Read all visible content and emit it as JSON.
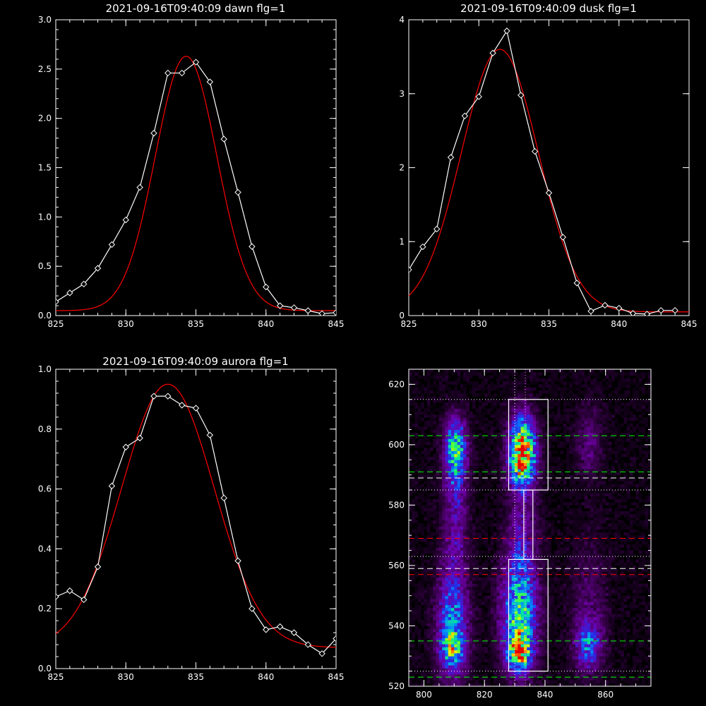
{
  "chart_data": [
    {
      "type": "line",
      "title": "2021-09-16T09:40:09 dawn flg=1",
      "xlim": [
        825,
        845
      ],
      "ylim": [
        0,
        3.0
      ],
      "xticks": [
        "825",
        "830",
        "835",
        "840",
        "845"
      ],
      "yticks": [
        "0.0",
        "0.5",
        "1.0",
        "1.5",
        "2.0",
        "2.5",
        "3.0"
      ],
      "series": [
        {
          "role": "data",
          "color": "#ffffff",
          "marker": "diamond",
          "x": [
            825,
            826,
            827,
            828,
            829,
            830,
            831,
            832,
            833,
            834,
            835,
            836,
            837,
            838,
            839,
            840,
            841,
            842,
            843,
            844,
            845
          ],
          "y": [
            0.14,
            0.23,
            0.32,
            0.48,
            0.72,
            0.97,
            1.3,
            1.85,
            2.46,
            2.46,
            2.57,
            2.37,
            1.79,
            1.25,
            0.7,
            0.29,
            0.1,
            0.08,
            0.05,
            0.02,
            0.03
          ]
        },
        {
          "role": "fit",
          "color": "#ff0000",
          "type": "gaussian",
          "amplitude": 2.58,
          "center": 834.3,
          "sigma": 2.2,
          "offset": 0.05
        }
      ]
    },
    {
      "type": "line",
      "title": "2021-09-16T09:40:09 dusk flg=1",
      "xlim": [
        825,
        845
      ],
      "ylim": [
        0,
        4
      ],
      "xticks": [
        "825",
        "830",
        "835",
        "840",
        "845"
      ],
      "yticks": [
        "0",
        "1",
        "2",
        "3",
        "4"
      ],
      "series": [
        {
          "role": "data",
          "color": "#ffffff",
          "marker": "diamond",
          "x": [
            825,
            826,
            827,
            828,
            829,
            830,
            831,
            832,
            833,
            834,
            835,
            836,
            837,
            838,
            839,
            840,
            841,
            842,
            843,
            844
          ],
          "y": [
            0.62,
            0.93,
            1.17,
            2.14,
            2.7,
            2.96,
            3.55,
            3.85,
            2.98,
            2.22,
            1.66,
            1.06,
            0.44,
            0.06,
            0.14,
            0.1,
            0.03,
            0.02,
            0.07,
            0.07
          ]
        },
        {
          "role": "fit",
          "color": "#ff0000",
          "type": "gaussian",
          "amplitude": 3.55,
          "center": 831.5,
          "sigma": 2.75,
          "offset": 0.05
        }
      ]
    },
    {
      "type": "line",
      "title": "2021-09-16T09:40:09 aurora flg=1",
      "xlim": [
        825,
        845
      ],
      "ylim": [
        0,
        1.0
      ],
      "xticks": [
        "825",
        "830",
        "835",
        "840",
        "845"
      ],
      "yticks": [
        "0.0",
        "0.2",
        "0.4",
        "0.6",
        "0.8",
        "1.0"
      ],
      "series": [
        {
          "role": "data",
          "color": "#ffffff",
          "marker": "diamond",
          "x": [
            825,
            826,
            827,
            828,
            829,
            830,
            831,
            832,
            833,
            834,
            835,
            836,
            837,
            838,
            839,
            840,
            841,
            842,
            843,
            844,
            845
          ],
          "y": [
            0.24,
            0.26,
            0.23,
            0.34,
            0.61,
            0.74,
            0.77,
            0.91,
            0.91,
            0.88,
            0.87,
            0.78,
            0.57,
            0.36,
            0.2,
            0.13,
            0.14,
            0.12,
            0.08,
            0.05,
            0.1
          ]
        },
        {
          "role": "fit",
          "color": "#ff0000",
          "type": "gaussian",
          "amplitude": 0.88,
          "center": 833.0,
          "sigma": 3.3,
          "offset": 0.07
        }
      ]
    },
    {
      "type": "heatmap",
      "title": "",
      "xlim": [
        795,
        875
      ],
      "ylim": [
        520,
        625
      ],
      "xticks": [
        "800",
        "820",
        "840",
        "860"
      ],
      "yticks": [
        "520",
        "540",
        "560",
        "580",
        "600",
        "620"
      ],
      "blobs": [
        {
          "x": 810,
          "y": 600,
          "sx": 2.5,
          "sy": 6,
          "amp": 0.45
        },
        {
          "x": 810,
          "y": 590,
          "sx": 2.5,
          "sy": 8,
          "amp": 0.3
        },
        {
          "x": 810,
          "y": 570,
          "sx": 3,
          "sy": 10,
          "amp": 0.18
        },
        {
          "x": 809,
          "y": 540,
          "sx": 3.5,
          "sy": 12,
          "amp": 0.45
        },
        {
          "x": 809,
          "y": 532,
          "sx": 2.5,
          "sy": 4,
          "amp": 0.35
        },
        {
          "x": 832,
          "y": 600,
          "sx": 3,
          "sy": 7,
          "amp": 0.7
        },
        {
          "x": 832,
          "y": 592,
          "sx": 3,
          "sy": 5,
          "amp": 0.45
        },
        {
          "x": 832,
          "y": 570,
          "sx": 3.5,
          "sy": 12,
          "amp": 0.2
        },
        {
          "x": 831,
          "y": 543,
          "sx": 4,
          "sy": 12,
          "amp": 0.6
        },
        {
          "x": 831,
          "y": 531,
          "sx": 2.5,
          "sy": 4,
          "amp": 0.6
        },
        {
          "x": 854,
          "y": 600,
          "sx": 3,
          "sy": 8,
          "amp": 0.15
        },
        {
          "x": 854,
          "y": 533,
          "sx": 3,
          "sy": 5,
          "amp": 0.35
        },
        {
          "x": 854,
          "y": 545,
          "sx": 4,
          "sy": 15,
          "amp": 0.13
        }
      ],
      "background": 0.06,
      "boxes": [
        {
          "x": [
            828,
            841
          ],
          "y": [
            585,
            615
          ]
        },
        {
          "x": [
            828,
            841
          ],
          "y": [
            525,
            562
          ]
        },
        {
          "x": [
            833,
            836
          ],
          "y": [
            562,
            585
          ]
        }
      ],
      "hlines": [
        {
          "y": 615,
          "color": "#ffffff",
          "style": "dotted"
        },
        {
          "y": 603,
          "color": "#00ff00",
          "style": "dashed"
        },
        {
          "y": 591,
          "color": "#00ff00",
          "style": "dashed"
        },
        {
          "y": 589,
          "color": "#ffffff",
          "style": "dashed"
        },
        {
          "y": 585,
          "color": "#ffffff",
          "style": "dotted"
        },
        {
          "y": 569,
          "color": "#ff0000",
          "style": "dashed"
        },
        {
          "y": 563,
          "color": "#ffffff",
          "style": "dotted"
        },
        {
          "y": 559,
          "color": "#ffffff",
          "style": "dashed"
        },
        {
          "y": 557,
          "color": "#ff0000",
          "style": "dashed"
        },
        {
          "y": 535,
          "color": "#00ff00",
          "style": "dashed"
        },
        {
          "y": 525,
          "color": "#ffffff",
          "style": "dotted"
        },
        {
          "y": 523,
          "color": "#00ff00",
          "style": "dashed"
        }
      ],
      "vlines": [
        {
          "x": 830,
          "color": "#ffffff",
          "style": "dotted"
        },
        {
          "x": 833.5,
          "color": "#ff88ff",
          "style": "dotted"
        }
      ]
    }
  ]
}
